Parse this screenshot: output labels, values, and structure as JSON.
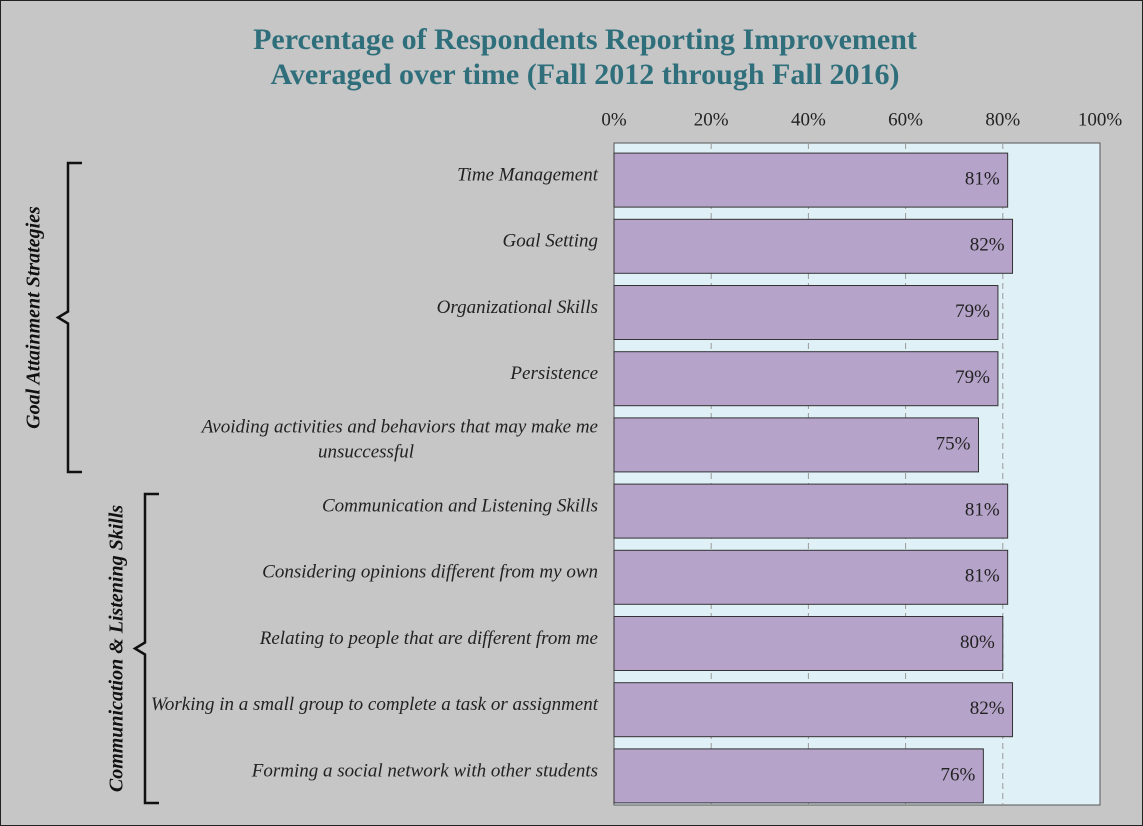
{
  "chart_data": {
    "type": "bar",
    "orientation": "horizontal",
    "title": "Percentage of Respondents Reporting Improvement",
    "subtitle": "Averaged over time (Fall 2012 through Fall 2016)",
    "categories": [
      "Time Management",
      "Goal Setting",
      "Organizational Skills",
      "Persistence",
      "Avoiding activities and behaviors that may make me unsuccessful",
      "Communication and Listening Skills",
      "Considering opinions different from my own",
      "Relating to people that are different from me",
      "Working in a small group to complete a task or assignment",
      "Forming a social network with other students"
    ],
    "values": [
      81,
      82,
      79,
      79,
      75,
      81,
      81,
      80,
      82,
      76
    ],
    "value_labels": [
      "81%",
      "82%",
      "79%",
      "79%",
      "75%",
      "81%",
      "81%",
      "80%",
      "82%",
      "76%"
    ],
    "groups": [
      {
        "name": "Goal Attainment Strategies",
        "size": 5
      },
      {
        "name": "Communication & Listening Skills",
        "size": 5
      }
    ],
    "color": "#b5a3c9",
    "xlim": [
      0,
      100
    ],
    "xticks": [
      {
        "value": 0,
        "label": "0%"
      },
      {
        "value": 20,
        "label": "20%"
      },
      {
        "value": 40,
        "label": "40%"
      },
      {
        "value": 60,
        "label": "60%"
      },
      {
        "value": 80,
        "label": "80%"
      },
      {
        "value": 100,
        "label": "100%"
      }
    ],
    "grid": true
  }
}
